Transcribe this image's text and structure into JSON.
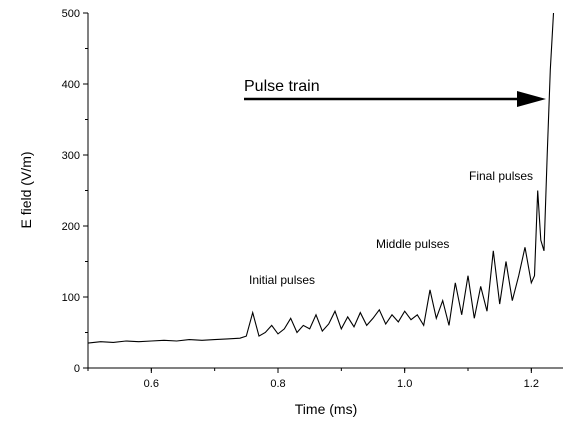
{
  "chart_data": {
    "type": "line",
    "xlabel": "Time (ms)",
    "ylabel": "E field (V/m)",
    "xlim": [
      0.5,
      1.25
    ],
    "ylim": [
      0,
      500
    ],
    "x_ticks": [
      0.6,
      0.8,
      1.0,
      1.2
    ],
    "x_tick_labels": [
      "0.6",
      "0.8",
      "1.0",
      "1.2"
    ],
    "y_ticks": [
      0,
      100,
      200,
      300,
      400,
      500
    ],
    "y_tick_labels": [
      "0",
      "100",
      "200",
      "300",
      "400",
      "500"
    ],
    "grid": false,
    "legend": "none",
    "series": [
      {
        "x": [
          0.5,
          0.52,
          0.54,
          0.56,
          0.58,
          0.6,
          0.62,
          0.64,
          0.66,
          0.68,
          0.7,
          0.72,
          0.74,
          0.75,
          0.76,
          0.77,
          0.78,
          0.79,
          0.8,
          0.81,
          0.82,
          0.83,
          0.84,
          0.85,
          0.86,
          0.87,
          0.88,
          0.89,
          0.9,
          0.91,
          0.92,
          0.93,
          0.94,
          0.95,
          0.96,
          0.97,
          0.98,
          0.99,
          1.0,
          1.01,
          1.02,
          1.03,
          1.04,
          1.05,
          1.06,
          1.07,
          1.08,
          1.09,
          1.1,
          1.11,
          1.12,
          1.13,
          1.14,
          1.15,
          1.16,
          1.17,
          1.18,
          1.19,
          1.2,
          1.205,
          1.21,
          1.215,
          1.22,
          1.225,
          1.23,
          1.235
        ],
        "y": [
          35,
          37,
          36,
          38,
          37,
          38,
          39,
          38,
          40,
          39,
          40,
          41,
          42,
          45,
          78,
          45,
          50,
          60,
          48,
          55,
          70,
          50,
          60,
          55,
          75,
          52,
          62,
          80,
          55,
          72,
          58,
          78,
          60,
          70,
          82,
          62,
          75,
          65,
          80,
          68,
          75,
          60,
          110,
          70,
          95,
          60,
          120,
          75,
          130,
          70,
          115,
          80,
          165,
          90,
          150,
          95,
          130,
          170,
          120,
          130,
          250,
          180,
          165,
          300,
          420,
          500
        ]
      }
    ]
  },
  "annotations": {
    "initial": "Initial pulses",
    "middle": "Middle pulses",
    "final": "Final pulses",
    "arrow": "Pulse train"
  }
}
